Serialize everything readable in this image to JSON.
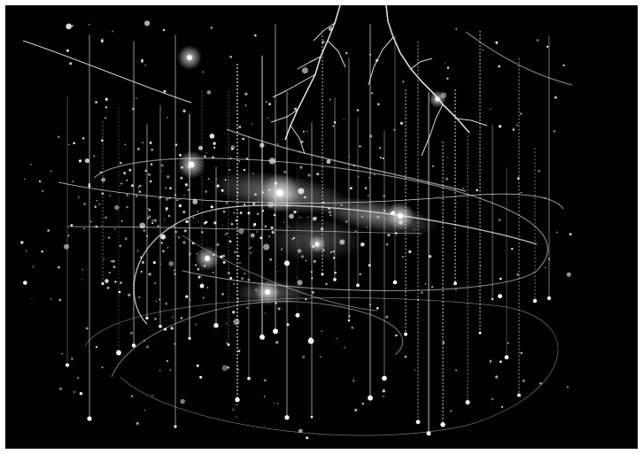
{
  "image": {
    "background_color": "#000000",
    "frame_color": "#ffffff",
    "primary_color": "#ffffff",
    "subject": "network-visualization-light-trails"
  }
}
